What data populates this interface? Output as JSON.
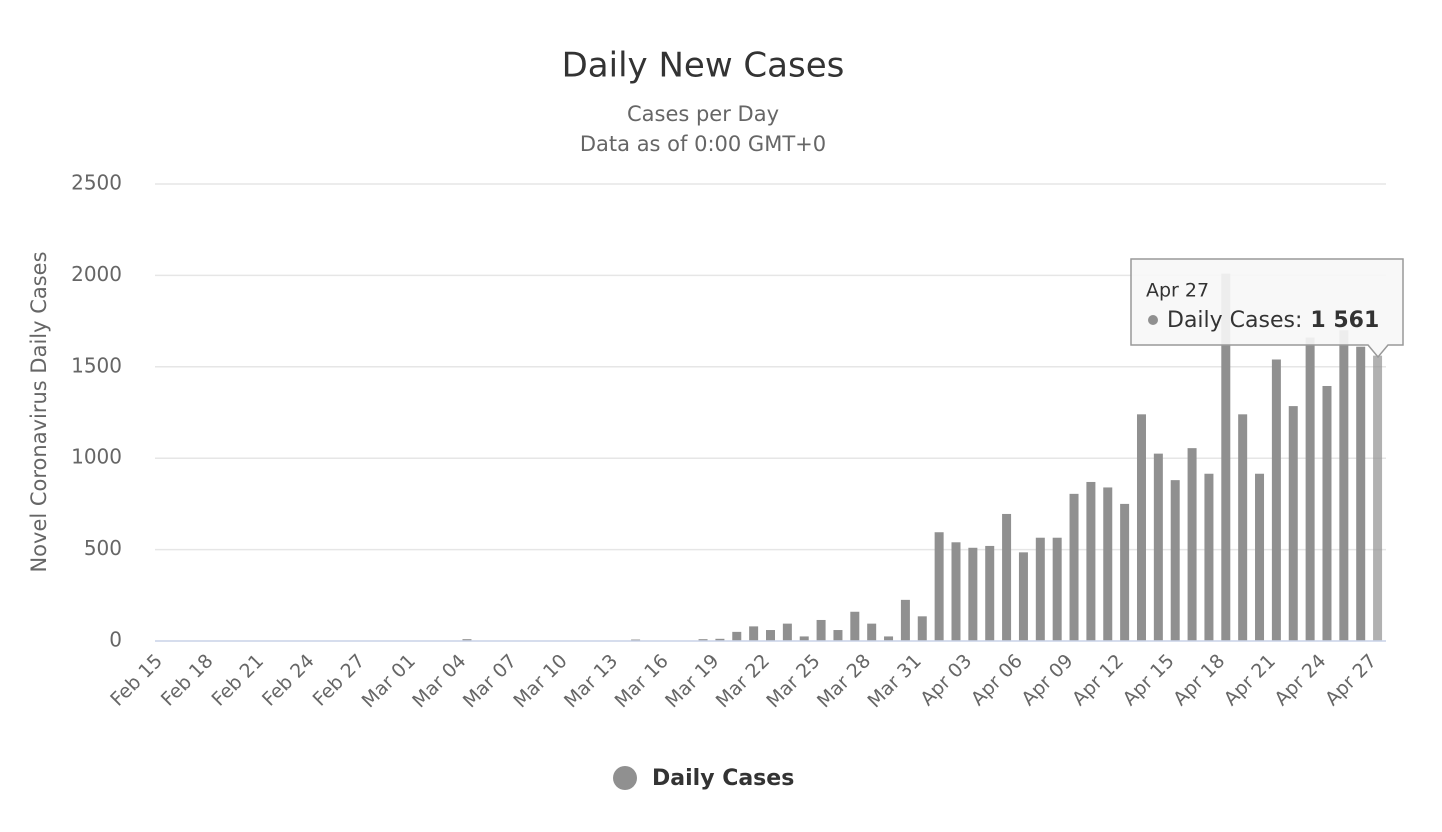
{
  "chart_data": {
    "type": "bar",
    "title": "Daily New Cases",
    "subtitle": [
      "Cases per Day",
      "Data as of 0:00 GMT+0"
    ],
    "y_label": "Novel Coronavirus Daily Cases",
    "categories": [
      "Feb 15",
      null,
      null,
      "Feb 18",
      null,
      null,
      "Feb 21",
      null,
      null,
      "Feb 24",
      null,
      null,
      "Feb 27",
      null,
      null,
      "Mar 01",
      null,
      null,
      "Mar 04",
      null,
      null,
      "Mar 07",
      null,
      null,
      "Mar 10",
      null,
      null,
      "Mar 13",
      null,
      null,
      "Mar 16",
      null,
      null,
      "Mar 19",
      null,
      null,
      "Mar 22",
      null,
      null,
      "Mar 25",
      null,
      null,
      "Mar 28",
      null,
      null,
      "Mar 31",
      null,
      null,
      "Apr 03",
      null,
      null,
      "Apr 06",
      null,
      null,
      "Apr 09",
      null,
      null,
      "Apr 12",
      null,
      null,
      "Apr 15",
      null,
      null,
      "Apr 18",
      null,
      null,
      "Apr 21",
      null,
      null,
      "Apr 24",
      null,
      null,
      "Apr 27"
    ],
    "series": [
      {
        "name": "Daily Cases",
        "color": "#909090",
        "values": [
          0,
          0,
          0,
          0,
          0,
          0,
          0,
          0,
          0,
          0,
          0,
          0,
          0,
          0,
          0,
          0,
          0,
          0,
          10,
          0,
          0,
          0,
          0,
          0,
          0,
          0,
          0,
          0,
          8,
          0,
          0,
          0,
          10,
          12,
          50,
          80,
          60,
          95,
          25,
          115,
          60,
          160,
          95,
          25,
          225,
          135,
          595,
          540,
          510,
          520,
          695,
          485,
          565,
          565,
          805,
          870,
          840,
          750,
          1240,
          1025,
          880,
          1055,
          915,
          2010,
          1240,
          915,
          1540,
          1285,
          1660,
          1395,
          1700,
          1610,
          1561
        ]
      }
    ],
    "ylim": [
      0,
      2500
    ],
    "yticks": [
      0,
      500,
      1000,
      1500,
      2000,
      2500
    ],
    "grid": true,
    "tooltip": {
      "label": "Daily Cases:",
      "value_label": "1 561"
    }
  }
}
